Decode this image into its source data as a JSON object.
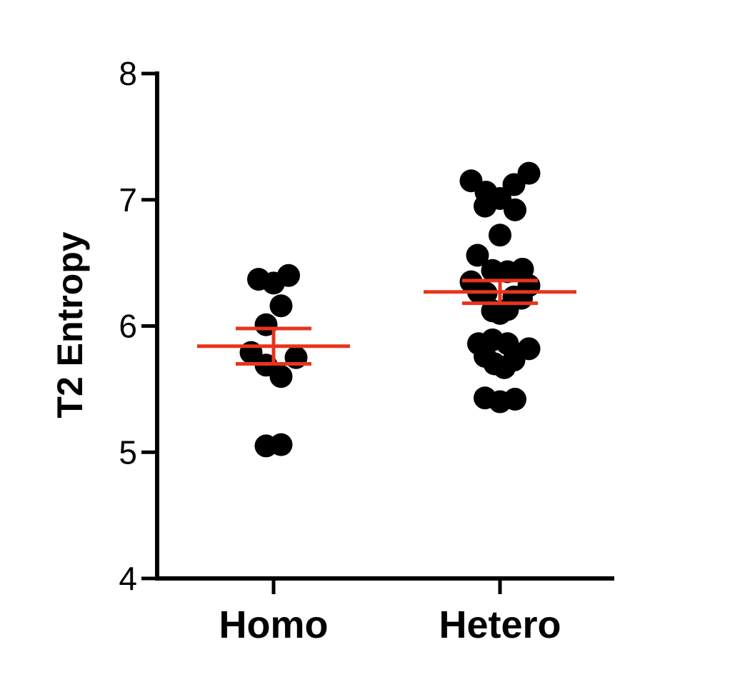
{
  "chart_data": {
    "type": "scatter",
    "ylabel": "T2 Entropy",
    "xlabel": "",
    "ylim": [
      4,
      8
    ],
    "yticks": [
      4,
      5,
      6,
      7,
      8
    ],
    "categories": [
      "Homo",
      "Hetero"
    ],
    "grid": false,
    "colors": {
      "points": "#000000",
      "error_bars": "#e8341c",
      "axes": "#000000"
    },
    "groups": [
      {
        "category": "Homo",
        "values": [
          6.37,
          6.34,
          6.4,
          6.16,
          6.01,
          5.79,
          5.69,
          5.75,
          5.6,
          5.05,
          5.06
        ],
        "jitter": [
          -0.14,
          0.0,
          0.14,
          0.07,
          -0.07,
          -0.21,
          -0.07,
          0.21,
          0.07,
          -0.07,
          0.07
        ],
        "mean": 5.84,
        "sem_upper": 5.98,
        "sem_lower": 5.7
      },
      {
        "category": "Hetero",
        "values": [
          7.15,
          7.06,
          7.01,
          7.12,
          7.21,
          6.95,
          6.92,
          6.72,
          6.56,
          6.44,
          6.43,
          6.45,
          6.35,
          6.27,
          6.26,
          6.23,
          6.22,
          6.32,
          6.12,
          6.1,
          6.13,
          5.89,
          5.86,
          5.86,
          5.82,
          5.76,
          5.7,
          5.67,
          5.73,
          5.43,
          5.4,
          5.42
        ],
        "jitter": [
          -0.27,
          -0.13,
          0.0,
          0.13,
          0.27,
          -0.14,
          0.14,
          0.0,
          -0.21,
          -0.07,
          0.07,
          0.21,
          -0.27,
          -0.2,
          -0.13,
          0.13,
          0.2,
          0.27,
          -0.07,
          0.0,
          0.07,
          -0.07,
          -0.2,
          0.07,
          0.27,
          -0.14,
          -0.05,
          0.04,
          0.13,
          -0.14,
          0.0,
          0.14
        ],
        "mean": 6.27,
        "sem_upper": 6.36,
        "sem_lower": 6.18
      }
    ]
  }
}
